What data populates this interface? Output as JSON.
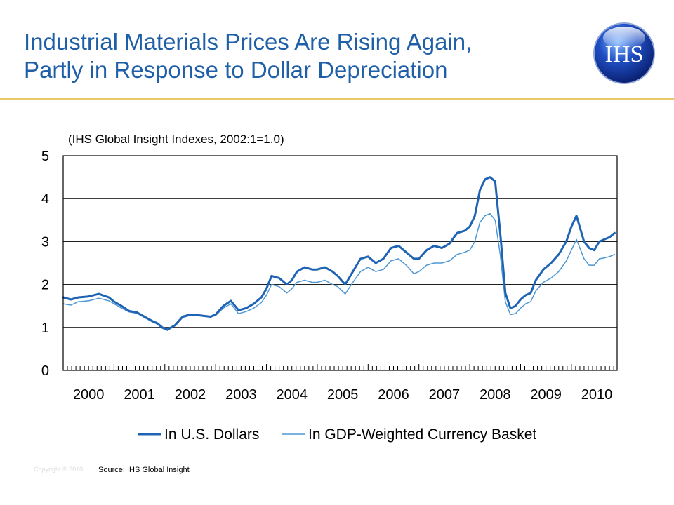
{
  "slide": {
    "title_line1": "Industrial Materials Prices Are Rising Again,",
    "title_line2": "Partly in Response to Dollar Depreciation",
    "copyright": "Copyright © 2010",
    "source_label": "Source:",
    "source_value": "IHS Global Insight"
  },
  "logo": {
    "text": "IHS",
    "icon": "ihs-globe-logo"
  },
  "colors": {
    "title": "#1f5fa8",
    "rule": "#e8c86a",
    "usd": "#1f64b4",
    "basket": "#4f97d2"
  },
  "chart_data": {
    "type": "line",
    "subtitle": "(IHS Global Insight Indexes, 2002:1=1.0)",
    "xlim": [
      2000,
      2010.9
    ],
    "ylim": [
      0,
      5
    ],
    "yticks": [
      0,
      1,
      2,
      3,
      4,
      5
    ],
    "ytick_labels": [
      "0",
      "1",
      "2",
      "3",
      "4",
      "5"
    ],
    "xticks": [
      2000,
      2001,
      2002,
      2003,
      2004,
      2005,
      2006,
      2007,
      2008,
      2009,
      2010
    ],
    "xtick_labels": [
      "2000",
      "2001",
      "2002",
      "2003",
      "2004",
      "2005",
      "2006",
      "2007",
      "2008",
      "2009",
      "2010"
    ],
    "grid": "horizontal",
    "legend": "bottom",
    "series": [
      {
        "name": "In U.S. Dollars",
        "color": "#1f64b4",
        "x": [
          2000.0,
          2000.15,
          2000.3,
          2000.5,
          2000.7,
          2000.9,
          2001.0,
          2001.15,
          2001.3,
          2001.45,
          2001.6,
          2001.75,
          2001.85,
          2001.95,
          2002.05,
          2002.2,
          2002.35,
          2002.5,
          2002.7,
          2002.9,
          2003.0,
          2003.15,
          2003.3,
          2003.45,
          2003.6,
          2003.75,
          2003.9,
          2004.0,
          2004.1,
          2004.25,
          2004.4,
          2004.5,
          2004.6,
          2004.75,
          2004.9,
          2005.0,
          2005.15,
          2005.3,
          2005.4,
          2005.55,
          2005.7,
          2005.85,
          2006.0,
          2006.15,
          2006.3,
          2006.45,
          2006.6,
          2006.75,
          2006.9,
          2007.0,
          2007.15,
          2007.3,
          2007.45,
          2007.6,
          2007.75,
          2007.9,
          2008.0,
          2008.1,
          2008.2,
          2008.3,
          2008.4,
          2008.5,
          2008.6,
          2008.7,
          2008.8,
          2008.9,
          2009.0,
          2009.1,
          2009.2,
          2009.3,
          2009.45,
          2009.6,
          2009.75,
          2009.9,
          2010.0,
          2010.1,
          2010.25,
          2010.35,
          2010.45,
          2010.55,
          2010.65,
          2010.75,
          2010.85
        ],
        "values": [
          1.7,
          1.65,
          1.7,
          1.72,
          1.78,
          1.7,
          1.6,
          1.5,
          1.38,
          1.35,
          1.25,
          1.15,
          1.1,
          1.0,
          0.95,
          1.05,
          1.25,
          1.3,
          1.28,
          1.25,
          1.3,
          1.5,
          1.62,
          1.4,
          1.45,
          1.55,
          1.7,
          1.9,
          2.2,
          2.15,
          2.0,
          2.1,
          2.3,
          2.4,
          2.35,
          2.35,
          2.4,
          2.3,
          2.2,
          2.0,
          2.3,
          2.6,
          2.65,
          2.5,
          2.6,
          2.85,
          2.9,
          2.75,
          2.6,
          2.6,
          2.8,
          2.9,
          2.85,
          2.95,
          3.2,
          3.25,
          3.35,
          3.6,
          4.2,
          4.45,
          4.5,
          4.4,
          3.2,
          1.8,
          1.45,
          1.5,
          1.65,
          1.75,
          1.8,
          2.1,
          2.35,
          2.5,
          2.7,
          3.0,
          3.35,
          3.6,
          3.0,
          2.85,
          2.8,
          3.0,
          3.05,
          3.1,
          3.2
        ]
      },
      {
        "name": "In GDP-Weighted Currency Basket",
        "color": "#4f97d2",
        "x": [
          2000.0,
          2000.15,
          2000.3,
          2000.5,
          2000.7,
          2000.9,
          2001.0,
          2001.15,
          2001.3,
          2001.45,
          2001.6,
          2001.75,
          2001.85,
          2001.95,
          2002.05,
          2002.2,
          2002.35,
          2002.5,
          2002.7,
          2002.9,
          2003.0,
          2003.15,
          2003.3,
          2003.45,
          2003.6,
          2003.75,
          2003.9,
          2004.0,
          2004.1,
          2004.25,
          2004.4,
          2004.5,
          2004.6,
          2004.75,
          2004.9,
          2005.0,
          2005.15,
          2005.3,
          2005.4,
          2005.55,
          2005.7,
          2005.85,
          2006.0,
          2006.15,
          2006.3,
          2006.45,
          2006.6,
          2006.75,
          2006.9,
          2007.0,
          2007.15,
          2007.3,
          2007.45,
          2007.6,
          2007.75,
          2007.9,
          2008.0,
          2008.1,
          2008.2,
          2008.3,
          2008.4,
          2008.5,
          2008.6,
          2008.7,
          2008.8,
          2008.9,
          2009.0,
          2009.1,
          2009.2,
          2009.3,
          2009.45,
          2009.6,
          2009.75,
          2009.9,
          2010.0,
          2010.1,
          2010.25,
          2010.35,
          2010.45,
          2010.55,
          2010.65,
          2010.75,
          2010.85
        ],
        "values": [
          1.55,
          1.52,
          1.6,
          1.62,
          1.68,
          1.62,
          1.55,
          1.45,
          1.36,
          1.33,
          1.23,
          1.13,
          1.08,
          0.98,
          0.93,
          1.04,
          1.23,
          1.28,
          1.27,
          1.24,
          1.28,
          1.45,
          1.55,
          1.32,
          1.37,
          1.45,
          1.58,
          1.75,
          2.0,
          1.95,
          1.8,
          1.9,
          2.05,
          2.1,
          2.05,
          2.05,
          2.1,
          2.0,
          1.95,
          1.78,
          2.05,
          2.3,
          2.4,
          2.3,
          2.35,
          2.55,
          2.6,
          2.45,
          2.25,
          2.3,
          2.45,
          2.5,
          2.5,
          2.55,
          2.7,
          2.75,
          2.8,
          3.0,
          3.45,
          3.6,
          3.65,
          3.5,
          2.7,
          1.6,
          1.3,
          1.32,
          1.45,
          1.55,
          1.6,
          1.85,
          2.05,
          2.15,
          2.3,
          2.55,
          2.8,
          3.05,
          2.6,
          2.45,
          2.45,
          2.6,
          2.62,
          2.65,
          2.7
        ]
      }
    ]
  }
}
